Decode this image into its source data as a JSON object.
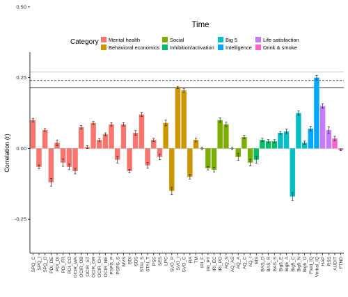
{
  "chart_data": {
    "type": "bar",
    "title": "Time",
    "xlabel": "",
    "ylabel": "Correlation (r)",
    "ylim": [
      -0.37,
      0.34
    ],
    "yticks": [
      -0.25,
      0,
      0.25,
      0.5
    ],
    "ytick_labels": [
      "-0.25",
      "0.00",
      "0.25",
      "0.50"
    ],
    "grid": false,
    "legend_position": "top",
    "legend_title": "Category",
    "legend": [
      {
        "name": "Mental health",
        "color": "#F8766D"
      },
      {
        "name": "Behavioral economics",
        "color": "#CD9600"
      },
      {
        "name": "Social",
        "color": "#7CAE00"
      },
      {
        "name": "Inhibition/activation",
        "color": "#00BE67"
      },
      {
        "name": "Big 5",
        "color": "#00BFC4"
      },
      {
        "name": "Intelligence",
        "color": "#00A9FF"
      },
      {
        "name": "Life satisfaction",
        "color": "#C77CFF"
      },
      {
        "name": "Drink & smoke",
        "color": "#FF61CC"
      }
    ],
    "reference_lines": [
      {
        "y": 0.27,
        "style": "solid",
        "color": "#c8c8c8"
      },
      {
        "y": 0.24,
        "style": "dashed",
        "color": "#444444"
      },
      {
        "y": 0.215,
        "style": "solid",
        "color": "#444444"
      }
    ],
    "categories": [
      "SPQ_C",
      "SPQ_I",
      "SPQ_O",
      "PDI_DE",
      "PDI_DI",
      "PDI_FR",
      "PDI_CO",
      "OCIR_WA",
      "OCIR_OB",
      "OCIR_ST",
      "OCIR_OR",
      "OCIR_CH",
      "OCIR_NE",
      "PSPS_P",
      "PSPS_S",
      "MVS",
      "BDI",
      "SDS",
      "STAI_S",
      "STAI_T",
      "PSS",
      "SES",
      "LPC",
      "SVO_P",
      "SVO_I",
      "SVO_C",
      "RA",
      "TM",
      "IRI_F",
      "IRI_PT",
      "IRI_EC",
      "IRI_PD",
      "AQ_S",
      "AQ_AS",
      "AQ_A",
      "AQ_C",
      "AQ_I",
      "BIS",
      "BAS_D",
      "BAS_R",
      "BAS_S",
      "Big5_E",
      "Big5_A",
      "Big5_C",
      "Big5_N",
      "Big5_O",
      "Fluid_IQ",
      "Verbal_IQ",
      "HAP",
      "RSS",
      "AUDIT",
      "FTND"
    ],
    "values": [
      0.1,
      -0.065,
      0.065,
      -0.12,
      0.02,
      -0.05,
      -0.065,
      -0.08,
      0.075,
      0.005,
      0.09,
      0.03,
      0.05,
      0.085,
      -0.04,
      0.085,
      -0.08,
      0.055,
      0.12,
      -0.06,
      0.03,
      -0.03,
      0.09,
      -0.15,
      0.215,
      0.205,
      -0.1,
      0.03,
      0.0,
      -0.07,
      -0.075,
      0.1,
      0.085,
      0.0,
      -0.03,
      0.04,
      -0.05,
      -0.04,
      0.03,
      0.025,
      0.025,
      0.055,
      0.06,
      -0.17,
      0.125,
      0.02,
      0.07,
      0.25,
      0.15,
      0.065,
      0.035,
      -0.005
    ],
    "errors": [
      0.006,
      0.006,
      0.005,
      0.014,
      0.01,
      0.013,
      0.01,
      0.01,
      0.006,
      0.005,
      0.005,
      0.005,
      0.005,
      0.006,
      0.012,
      0.006,
      0.006,
      0.008,
      0.007,
      0.01,
      0.006,
      0.01,
      0.01,
      0.013,
      0.004,
      0.006,
      0.008,
      0.007,
      0.005,
      0.006,
      0.008,
      0.008,
      0.008,
      0.004,
      0.012,
      0.006,
      0.012,
      0.012,
      0.006,
      0.006,
      0.006,
      0.005,
      0.008,
      0.014,
      0.008,
      0.006,
      0.008,
      0.008,
      0.008,
      0.012,
      0.008,
      0.003
    ],
    "category_groups": [
      "Mental health",
      "Mental health",
      "Mental health",
      "Mental health",
      "Mental health",
      "Mental health",
      "Mental health",
      "Mental health",
      "Mental health",
      "Mental health",
      "Mental health",
      "Mental health",
      "Mental health",
      "Mental health",
      "Mental health",
      "Mental health",
      "Mental health",
      "Mental health",
      "Mental health",
      "Mental health",
      "Mental health",
      "Mental health",
      "Behavioral economics",
      "Behavioral economics",
      "Behavioral economics",
      "Behavioral economics",
      "Behavioral economics",
      "Behavioral economics",
      "Social",
      "Social",
      "Social",
      "Social",
      "Social",
      "Social",
      "Social",
      "Social",
      "Social",
      "Inhibition/activation",
      "Inhibition/activation",
      "Inhibition/activation",
      "Inhibition/activation",
      "Big 5",
      "Big 5",
      "Big 5",
      "Big 5",
      "Big 5",
      "Intelligence",
      "Intelligence",
      "Life satisfaction",
      "Life satisfaction",
      "Drink & smoke",
      "Drink & smoke"
    ]
  }
}
